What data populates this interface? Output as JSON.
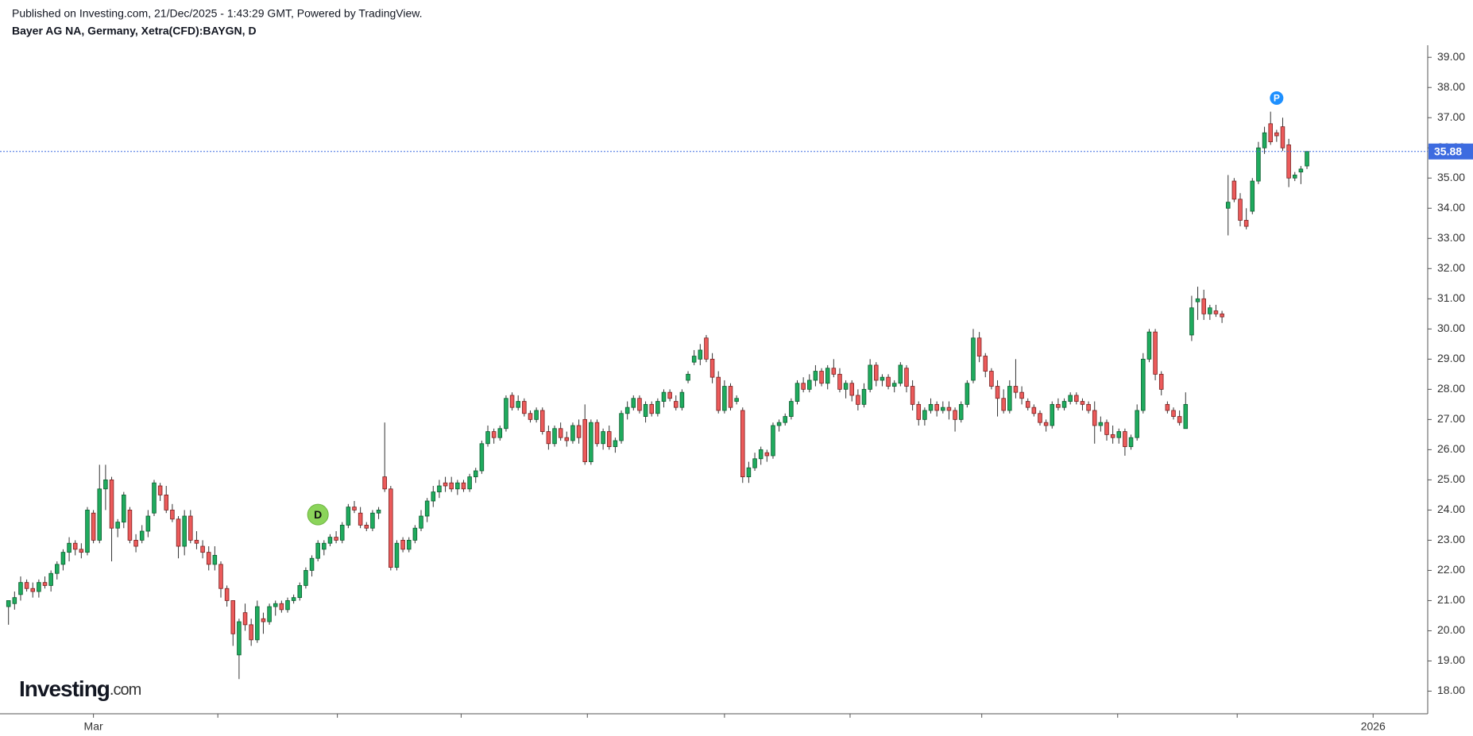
{
  "chart_data": {
    "type": "candlestick",
    "subtitle": "Published on Investing.com, 21/Dec/2025 - 1:43:29 GMT, Powered by TradingView.",
    "title": "Bayer AG NA, Germany, Xetra(CFD):BAYGN, D",
    "watermark": {
      "brand": "Investing",
      "suffix": ".com"
    },
    "up_color": "#1fab5e",
    "down_color": "#ec5b5b",
    "xlim": [
      -1.4,
      233.9
    ],
    "ylim": [
      17.25,
      39.4
    ],
    "yticks": [
      {
        "value": 18,
        "label": "18.00"
      },
      {
        "value": 19,
        "label": "19.00"
      },
      {
        "value": 20,
        "label": "20.00"
      },
      {
        "value": 21,
        "label": "21.00"
      },
      {
        "value": 22,
        "label": "22.00"
      },
      {
        "value": 23,
        "label": "23.00"
      },
      {
        "value": 24,
        "label": "24.00"
      },
      {
        "value": 25,
        "label": "25.00"
      },
      {
        "value": 26,
        "label": "26.00"
      },
      {
        "value": 27,
        "label": "27.00"
      },
      {
        "value": 28,
        "label": "28.00"
      },
      {
        "value": 29,
        "label": "29.00"
      },
      {
        "value": 30,
        "label": "30.00"
      },
      {
        "value": 31,
        "label": "31.00"
      },
      {
        "value": 32,
        "label": "32.00"
      },
      {
        "value": 33,
        "label": "33.00"
      },
      {
        "value": 34,
        "label": "34.00"
      },
      {
        "value": 35,
        "label": "35.00"
      },
      {
        "value": 36,
        "label": "36.00"
      },
      {
        "value": 37,
        "label": "37.00"
      },
      {
        "value": 38,
        "label": "38.00"
      },
      {
        "value": 39,
        "label": "39.00"
      }
    ],
    "xticks": [
      {
        "value": 14,
        "label": "Mar"
      },
      {
        "value": 34.5,
        "label": null
      },
      {
        "value": 54.2,
        "label": null
      },
      {
        "value": 74.6,
        "label": null
      },
      {
        "value": 95.4,
        "label": null
      },
      {
        "value": 118,
        "label": null
      },
      {
        "value": 138.7,
        "label": null
      },
      {
        "value": 160.4,
        "label": null
      },
      {
        "value": 182.8,
        "label": null
      },
      {
        "value": 202.5,
        "label": null
      },
      {
        "value": 224.9,
        "label": "2026"
      }
    ],
    "last_price": 35.88,
    "last_price_color": "#3d6be0",
    "markers": [
      {
        "label": "D",
        "index": 51,
        "value": 23.85,
        "color": "#8bd45a"
      },
      {
        "label": "P",
        "index": 209,
        "value": 37.65,
        "color": "#1e90ff"
      }
    ],
    "ohlc": [
      [
        20.8,
        21.0,
        20.2,
        21.0
      ],
      [
        20.9,
        21.3,
        20.7,
        21.1
      ],
      [
        21.2,
        21.8,
        21.0,
        21.6
      ],
      [
        21.6,
        21.7,
        21.3,
        21.4
      ],
      [
        21.4,
        21.6,
        21.1,
        21.3
      ],
      [
        21.3,
        21.7,
        21.1,
        21.6
      ],
      [
        21.6,
        21.8,
        21.4,
        21.5
      ],
      [
        21.5,
        22.0,
        21.3,
        21.9
      ],
      [
        21.9,
        22.3,
        21.7,
        22.2
      ],
      [
        22.2,
        22.7,
        22.0,
        22.6
      ],
      [
        22.6,
        23.1,
        22.3,
        22.9
      ],
      [
        22.9,
        23.0,
        22.5,
        22.7
      ],
      [
        22.7,
        22.9,
        22.4,
        22.6
      ],
      [
        22.6,
        24.1,
        22.5,
        24.0
      ],
      [
        23.9,
        24.0,
        22.9,
        23.0
      ],
      [
        23.0,
        25.5,
        22.9,
        24.7
      ],
      [
        24.7,
        25.5,
        24.0,
        25.0
      ],
      [
        25.0,
        25.1,
        22.3,
        23.4
      ],
      [
        23.4,
        23.7,
        23.1,
        23.6
      ],
      [
        23.6,
        24.6,
        23.4,
        24.5
      ],
      [
        24.0,
        24.1,
        22.9,
        23.0
      ],
      [
        23.0,
        23.2,
        22.6,
        22.8
      ],
      [
        23.0,
        23.5,
        22.9,
        23.3
      ],
      [
        23.3,
        24.0,
        23.1,
        23.8
      ],
      [
        23.9,
        25.0,
        23.8,
        24.9
      ],
      [
        24.8,
        24.9,
        24.3,
        24.5
      ],
      [
        24.5,
        24.8,
        23.9,
        24.0
      ],
      [
        24.0,
        24.2,
        23.6,
        23.7
      ],
      [
        23.7,
        23.8,
        22.4,
        22.8
      ],
      [
        22.8,
        24.0,
        22.5,
        23.8
      ],
      [
        23.8,
        24.0,
        22.9,
        23.0
      ],
      [
        23.0,
        23.3,
        22.7,
        22.9
      ],
      [
        22.8,
        23.0,
        22.4,
        22.6
      ],
      [
        22.6,
        22.8,
        22.0,
        22.2
      ],
      [
        22.2,
        22.8,
        22.0,
        22.5
      ],
      [
        22.2,
        22.3,
        21.1,
        21.4
      ],
      [
        21.4,
        21.5,
        20.8,
        21.0
      ],
      [
        21.0,
        21.0,
        19.5,
        19.9
      ],
      [
        19.2,
        20.4,
        18.4,
        20.3
      ],
      [
        20.6,
        20.9,
        20.0,
        20.2
      ],
      [
        20.2,
        20.4,
        19.5,
        19.7
      ],
      [
        19.7,
        21.0,
        19.6,
        20.8
      ],
      [
        20.4,
        20.6,
        19.9,
        20.3
      ],
      [
        20.3,
        20.9,
        20.2,
        20.8
      ],
      [
        20.8,
        21.0,
        20.5,
        20.9
      ],
      [
        20.9,
        21.0,
        20.6,
        20.7
      ],
      [
        20.7,
        21.1,
        20.6,
        21.0
      ],
      [
        21.0,
        21.2,
        20.9,
        21.1
      ],
      [
        21.1,
        21.6,
        21.0,
        21.5
      ],
      [
        21.5,
        22.1,
        21.4,
        22.0
      ],
      [
        22.0,
        22.5,
        21.8,
        22.4
      ],
      [
        22.4,
        23.0,
        22.3,
        22.9
      ],
      [
        22.7,
        23.0,
        22.5,
        22.9
      ],
      [
        22.9,
        23.2,
        22.8,
        23.1
      ],
      [
        23.1,
        23.3,
        22.9,
        23.0
      ],
      [
        23.0,
        23.6,
        22.9,
        23.5
      ],
      [
        23.5,
        24.2,
        23.4,
        24.1
      ],
      [
        24.1,
        24.3,
        23.9,
        24.0
      ],
      [
        23.9,
        24.1,
        23.4,
        23.5
      ],
      [
        23.5,
        23.6,
        23.3,
        23.4
      ],
      [
        23.4,
        24.0,
        23.3,
        23.9
      ],
      [
        23.9,
        24.1,
        23.7,
        24.0
      ],
      [
        25.1,
        26.9,
        24.6,
        24.7
      ],
      [
        24.7,
        24.8,
        22.0,
        22.1
      ],
      [
        22.1,
        23.0,
        22.0,
        22.9
      ],
      [
        23.0,
        23.1,
        22.6,
        22.7
      ],
      [
        22.7,
        23.1,
        22.6,
        23.0
      ],
      [
        23.0,
        23.5,
        22.9,
        23.4
      ],
      [
        23.4,
        24.0,
        23.3,
        23.8
      ],
      [
        23.8,
        24.4,
        23.6,
        24.3
      ],
      [
        24.3,
        24.8,
        24.1,
        24.6
      ],
      [
        24.6,
        25.0,
        24.4,
        24.8
      ],
      [
        24.9,
        25.1,
        24.6,
        24.8
      ],
      [
        24.9,
        25.1,
        24.6,
        24.7
      ],
      [
        24.7,
        25.0,
        24.5,
        24.9
      ],
      [
        24.9,
        25.0,
        24.6,
        24.7
      ],
      [
        24.7,
        25.2,
        24.6,
        25.1
      ],
      [
        25.1,
        25.4,
        24.9,
        25.3
      ],
      [
        25.3,
        26.3,
        25.2,
        26.2
      ],
      [
        26.2,
        26.8,
        26.1,
        26.6
      ],
      [
        26.6,
        26.7,
        26.2,
        26.4
      ],
      [
        26.4,
        26.8,
        26.3,
        26.7
      ],
      [
        26.7,
        27.8,
        26.6,
        27.7
      ],
      [
        27.8,
        27.9,
        27.3,
        27.4
      ],
      [
        27.4,
        27.8,
        27.3,
        27.6
      ],
      [
        27.6,
        27.7,
        27.1,
        27.2
      ],
      [
        27.2,
        27.3,
        26.9,
        27.0
      ],
      [
        27.0,
        27.4,
        26.9,
        27.3
      ],
      [
        27.3,
        27.4,
        26.5,
        26.6
      ],
      [
        26.6,
        26.8,
        26.0,
        26.2
      ],
      [
        26.2,
        26.8,
        26.1,
        26.7
      ],
      [
        26.7,
        26.9,
        26.3,
        26.4
      ],
      [
        26.4,
        26.6,
        26.1,
        26.3
      ],
      [
        26.3,
        26.9,
        26.2,
        26.8
      ],
      [
        26.8,
        27.0,
        26.2,
        26.4
      ],
      [
        27.0,
        27.5,
        25.5,
        25.6
      ],
      [
        25.6,
        27.0,
        25.5,
        26.9
      ],
      [
        26.9,
        27.0,
        26.1,
        26.2
      ],
      [
        26.2,
        26.7,
        26.0,
        26.6
      ],
      [
        26.6,
        26.8,
        26.0,
        26.1
      ],
      [
        26.1,
        26.4,
        25.9,
        26.3
      ],
      [
        26.3,
        27.3,
        26.2,
        27.2
      ],
      [
        27.2,
        27.6,
        27.0,
        27.4
      ],
      [
        27.4,
        27.8,
        27.3,
        27.7
      ],
      [
        27.7,
        27.8,
        27.2,
        27.3
      ],
      [
        27.1,
        27.6,
        26.9,
        27.5
      ],
      [
        27.5,
        27.6,
        27.1,
        27.2
      ],
      [
        27.2,
        27.7,
        27.1,
        27.6
      ],
      [
        27.6,
        28.0,
        27.4,
        27.9
      ],
      [
        27.9,
        28.0,
        27.6,
        27.7
      ],
      [
        27.6,
        27.8,
        27.3,
        27.4
      ],
      [
        27.4,
        28.0,
        27.3,
        27.9
      ],
      [
        28.3,
        28.6,
        28.2,
        28.5
      ],
      [
        28.9,
        29.3,
        28.8,
        29.1
      ],
      [
        29.0,
        29.5,
        28.8,
        29.3
      ],
      [
        29.7,
        29.8,
        28.9,
        29.0
      ],
      [
        29.0,
        29.2,
        28.2,
        28.4
      ],
      [
        28.4,
        28.6,
        27.2,
        27.3
      ],
      [
        27.3,
        28.3,
        27.2,
        28.1
      ],
      [
        28.1,
        28.2,
        27.3,
        27.4
      ],
      [
        27.6,
        27.8,
        27.5,
        27.7
      ],
      [
        27.3,
        27.4,
        24.9,
        25.1
      ],
      [
        25.1,
        25.6,
        24.9,
        25.4
      ],
      [
        25.4,
        25.9,
        25.3,
        25.7
      ],
      [
        25.7,
        26.1,
        25.5,
        26.0
      ],
      [
        25.9,
        26.0,
        25.6,
        25.8
      ],
      [
        25.8,
        26.9,
        25.7,
        26.8
      ],
      [
        26.8,
        27.0,
        26.6,
        26.9
      ],
      [
        26.9,
        27.2,
        26.8,
        27.1
      ],
      [
        27.1,
        27.7,
        27.0,
        27.6
      ],
      [
        27.6,
        28.3,
        27.5,
        28.2
      ],
      [
        28.2,
        28.4,
        27.9,
        28.0
      ],
      [
        28.0,
        28.5,
        27.9,
        28.3
      ],
      [
        28.3,
        28.8,
        28.1,
        28.6
      ],
      [
        28.6,
        28.7,
        28.1,
        28.2
      ],
      [
        28.2,
        28.8,
        28.0,
        28.7
      ],
      [
        28.7,
        29.0,
        28.4,
        28.5
      ],
      [
        28.5,
        28.7,
        27.9,
        28.0
      ],
      [
        28.0,
        28.3,
        27.7,
        28.2
      ],
      [
        28.2,
        28.3,
        27.6,
        27.8
      ],
      [
        27.8,
        28.0,
        27.3,
        27.5
      ],
      [
        27.5,
        28.2,
        27.4,
        28.0
      ],
      [
        28.0,
        29.0,
        27.9,
        28.8
      ],
      [
        28.8,
        28.9,
        28.1,
        28.3
      ],
      [
        28.3,
        28.5,
        28.1,
        28.4
      ],
      [
        28.4,
        28.5,
        28.0,
        28.1
      ],
      [
        28.1,
        28.3,
        27.9,
        28.2
      ],
      [
        28.2,
        28.9,
        28.1,
        28.8
      ],
      [
        28.7,
        28.8,
        27.9,
        28.1
      ],
      [
        28.1,
        28.3,
        27.3,
        27.5
      ],
      [
        27.5,
        27.6,
        26.8,
        27.0
      ],
      [
        27.0,
        27.4,
        26.8,
        27.3
      ],
      [
        27.3,
        27.7,
        27.2,
        27.5
      ],
      [
        27.5,
        27.6,
        27.1,
        27.3
      ],
      [
        27.3,
        27.6,
        27.2,
        27.4
      ],
      [
        27.4,
        27.6,
        27.0,
        27.3
      ],
      [
        27.3,
        27.4,
        26.6,
        27.0
      ],
      [
        27.0,
        27.6,
        26.9,
        27.5
      ],
      [
        27.5,
        28.3,
        27.4,
        28.2
      ],
      [
        28.3,
        30.0,
        28.2,
        29.7
      ],
      [
        29.7,
        29.9,
        28.9,
        29.1
      ],
      [
        29.1,
        29.2,
        28.4,
        28.6
      ],
      [
        28.6,
        28.7,
        28.0,
        28.1
      ],
      [
        28.1,
        28.3,
        27.1,
        27.7
      ],
      [
        27.7,
        28.0,
        27.2,
        27.3
      ],
      [
        27.3,
        28.3,
        27.2,
        28.1
      ],
      [
        28.1,
        29.0,
        27.7,
        27.9
      ],
      [
        27.9,
        28.1,
        27.5,
        27.7
      ],
      [
        27.6,
        27.7,
        27.3,
        27.4
      ],
      [
        27.4,
        27.5,
        27.1,
        27.2
      ],
      [
        27.2,
        27.3,
        26.8,
        26.9
      ],
      [
        26.9,
        27.0,
        26.6,
        26.8
      ],
      [
        26.8,
        27.6,
        26.7,
        27.5
      ],
      [
        27.5,
        27.7,
        27.3,
        27.4
      ],
      [
        27.4,
        27.7,
        27.3,
        27.6
      ],
      [
        27.6,
        27.9,
        27.5,
        27.8
      ],
      [
        27.8,
        27.9,
        27.5,
        27.6
      ],
      [
        27.6,
        27.7,
        27.3,
        27.5
      ],
      [
        27.5,
        27.6,
        27.2,
        27.3
      ],
      [
        27.3,
        27.6,
        26.2,
        26.8
      ],
      [
        26.8,
        27.1,
        26.6,
        26.9
      ],
      [
        26.9,
        27.0,
        26.3,
        26.5
      ],
      [
        26.5,
        26.8,
        26.2,
        26.4
      ],
      [
        26.4,
        26.7,
        26.2,
        26.6
      ],
      [
        26.6,
        26.7,
        25.8,
        26.1
      ],
      [
        26.1,
        26.5,
        26.0,
        26.4
      ],
      [
        26.4,
        27.5,
        26.3,
        27.3
      ],
      [
        27.3,
        29.2,
        27.2,
        29.0
      ],
      [
        29.0,
        30.0,
        28.9,
        29.9
      ],
      [
        29.9,
        30.0,
        28.3,
        28.5
      ],
      [
        28.5,
        28.6,
        27.8,
        28.0
      ],
      [
        27.5,
        27.6,
        27.2,
        27.3
      ],
      [
        27.3,
        27.4,
        27.0,
        27.1
      ],
      [
        27.1,
        27.3,
        26.8,
        26.9
      ],
      [
        26.7,
        27.9,
        26.7,
        27.5
      ],
      [
        29.8,
        31.1,
        29.6,
        30.7
      ],
      [
        30.9,
        31.4,
        30.3,
        31.0
      ],
      [
        31.0,
        31.3,
        30.3,
        30.5
      ],
      [
        30.5,
        30.8,
        30.3,
        30.7
      ],
      [
        30.6,
        30.8,
        30.4,
        30.5
      ],
      [
        30.5,
        30.6,
        30.2,
        30.4
      ],
      [
        34.0,
        35.1,
        33.1,
        34.2
      ],
      [
        34.9,
        35.0,
        34.2,
        34.3
      ],
      [
        34.3,
        34.5,
        33.4,
        33.6
      ],
      [
        33.6,
        34.0,
        33.3,
        33.4
      ],
      [
        33.9,
        35.0,
        33.8,
        34.9
      ],
      [
        34.9,
        36.2,
        34.8,
        36.0
      ],
      [
        36.0,
        36.7,
        35.8,
        36.5
      ],
      [
        36.8,
        37.2,
        36.1,
        36.2
      ],
      [
        36.5,
        36.6,
        36.2,
        36.4
      ],
      [
        36.7,
        37.0,
        35.9,
        36.0
      ],
      [
        36.1,
        36.3,
        34.7,
        35.0
      ],
      [
        35.0,
        35.2,
        34.9,
        35.1
      ],
      [
        35.2,
        35.4,
        34.8,
        35.3
      ],
      [
        35.4,
        35.9,
        35.3,
        35.88
      ]
    ]
  }
}
